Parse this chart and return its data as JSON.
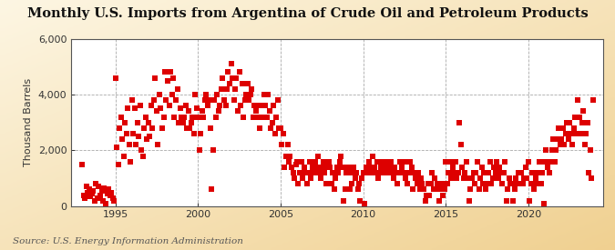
{
  "title": "Monthly U.S. Imports from Argentina of Crude Oil and Petroleum Products",
  "ylabel": "Thousand Barrels",
  "source": "Source: U.S. Energy Information Administration",
  "background_color": "#F5E6C8",
  "plot_bg_color": "#FFFFFF",
  "marker_color": "#DD0000",
  "marker_size": 15,
  "ylim": [
    0,
    6000
  ],
  "yticks": [
    0,
    2000,
    4000,
    6000
  ],
  "ytick_labels": [
    "0",
    "2,000",
    "4,000",
    "6,000"
  ],
  "xticks": [
    1995,
    2000,
    2005,
    2010,
    2015,
    2020
  ],
  "xlim_start": 1992.3,
  "xlim_end": 2024.5,
  "title_fontsize": 10.5,
  "label_fontsize": 8,
  "source_fontsize": 7.5,
  "data": [
    [
      1993.0,
      1500
    ],
    [
      1993.08,
      400
    ],
    [
      1993.17,
      300
    ],
    [
      1993.25,
      700
    ],
    [
      1993.33,
      500
    ],
    [
      1993.42,
      600
    ],
    [
      1993.5,
      350
    ],
    [
      1993.58,
      450
    ],
    [
      1993.67,
      550
    ],
    [
      1993.75,
      200
    ],
    [
      1993.83,
      800
    ],
    [
      1993.92,
      300
    ],
    [
      1994.0,
      700
    ],
    [
      1994.08,
      400
    ],
    [
      1994.17,
      550
    ],
    [
      1994.25,
      200
    ],
    [
      1994.33,
      650
    ],
    [
      1994.42,
      100
    ],
    [
      1994.5,
      450
    ],
    [
      1994.58,
      600
    ],
    [
      1994.67,
      380
    ],
    [
      1994.75,
      500
    ],
    [
      1994.83,
      300
    ],
    [
      1994.92,
      200
    ],
    [
      1995.0,
      4600
    ],
    [
      1995.08,
      2100
    ],
    [
      1995.17,
      1500
    ],
    [
      1995.25,
      2800
    ],
    [
      1995.33,
      3200
    ],
    [
      1995.42,
      2400
    ],
    [
      1995.5,
      1800
    ],
    [
      1995.58,
      3000
    ],
    [
      1995.67,
      2600
    ],
    [
      1995.75,
      3500
    ],
    [
      1995.83,
      2200
    ],
    [
      1995.92,
      1600
    ],
    [
      1996.0,
      3800
    ],
    [
      1996.08,
      2600
    ],
    [
      1996.17,
      3500
    ],
    [
      1996.25,
      2200
    ],
    [
      1996.33,
      3000
    ],
    [
      1996.42,
      2500
    ],
    [
      1996.5,
      3600
    ],
    [
      1996.58,
      2000
    ],
    [
      1996.67,
      1800
    ],
    [
      1996.75,
      2800
    ],
    [
      1996.83,
      3200
    ],
    [
      1996.92,
      2400
    ],
    [
      1997.0,
      3000
    ],
    [
      1997.08,
      2500
    ],
    [
      1997.17,
      3600
    ],
    [
      1997.25,
      2800
    ],
    [
      1997.33,
      3800
    ],
    [
      1997.42,
      4600
    ],
    [
      1997.5,
      3400
    ],
    [
      1997.58,
      2200
    ],
    [
      1997.67,
      4000
    ],
    [
      1997.75,
      3500
    ],
    [
      1997.83,
      2800
    ],
    [
      1997.92,
      3200
    ],
    [
      1998.0,
      4800
    ],
    [
      1998.08,
      3800
    ],
    [
      1998.17,
      4500
    ],
    [
      1998.25,
      3600
    ],
    [
      1998.33,
      4800
    ],
    [
      1998.42,
      4000
    ],
    [
      1998.5,
      4600
    ],
    [
      1998.58,
      3200
    ],
    [
      1998.67,
      3800
    ],
    [
      1998.75,
      4200
    ],
    [
      1998.83,
      3000
    ],
    [
      1998.92,
      3500
    ],
    [
      1999.0,
      3200
    ],
    [
      1999.08,
      3000
    ],
    [
      1999.17,
      3200
    ],
    [
      1999.25,
      3600
    ],
    [
      1999.33,
      2800
    ],
    [
      1999.42,
      3400
    ],
    [
      1999.5,
      2800
    ],
    [
      1999.58,
      3000
    ],
    [
      1999.67,
      3200
    ],
    [
      1999.75,
      2600
    ],
    [
      1999.83,
      4000
    ],
    [
      1999.92,
      3500
    ],
    [
      2000.0,
      3200
    ],
    [
      2000.08,
      2000
    ],
    [
      2000.17,
      2600
    ],
    [
      2000.25,
      3400
    ],
    [
      2000.33,
      3200
    ],
    [
      2000.42,
      3800
    ],
    [
      2000.5,
      4000
    ],
    [
      2000.58,
      3600
    ],
    [
      2000.67,
      3800
    ],
    [
      2000.75,
      2800
    ],
    [
      2000.83,
      600
    ],
    [
      2000.92,
      2000
    ],
    [
      2001.0,
      3800
    ],
    [
      2001.08,
      3200
    ],
    [
      2001.17,
      4000
    ],
    [
      2001.25,
      3400
    ],
    [
      2001.33,
      3600
    ],
    [
      2001.42,
      4200
    ],
    [
      2001.5,
      4600
    ],
    [
      2001.58,
      3800
    ],
    [
      2001.67,
      3600
    ],
    [
      2001.75,
      4200
    ],
    [
      2001.83,
      4800
    ],
    [
      2001.92,
      4400
    ],
    [
      2002.0,
      5100
    ],
    [
      2002.08,
      4600
    ],
    [
      2002.17,
      3800
    ],
    [
      2002.25,
      4200
    ],
    [
      2002.33,
      4600
    ],
    [
      2002.42,
      3400
    ],
    [
      2002.5,
      4800
    ],
    [
      2002.58,
      3600
    ],
    [
      2002.67,
      4400
    ],
    [
      2002.75,
      3200
    ],
    [
      2002.83,
      3800
    ],
    [
      2002.92,
      4000
    ],
    [
      2003.0,
      4400
    ],
    [
      2003.08,
      3800
    ],
    [
      2003.17,
      4000
    ],
    [
      2003.25,
      4200
    ],
    [
      2003.33,
      3200
    ],
    [
      2003.42,
      3600
    ],
    [
      2003.5,
      3400
    ],
    [
      2003.58,
      3200
    ],
    [
      2003.67,
      3600
    ],
    [
      2003.75,
      2800
    ],
    [
      2003.83,
      3200
    ],
    [
      2003.92,
      3600
    ],
    [
      2004.0,
      4000
    ],
    [
      2004.08,
      3600
    ],
    [
      2004.17,
      3200
    ],
    [
      2004.25,
      4000
    ],
    [
      2004.33,
      3400
    ],
    [
      2004.42,
      2800
    ],
    [
      2004.5,
      3000
    ],
    [
      2004.58,
      3600
    ],
    [
      2004.67,
      2600
    ],
    [
      2004.75,
      3200
    ],
    [
      2004.83,
      3800
    ],
    [
      2004.92,
      2800
    ],
    [
      2005.0,
      2800
    ],
    [
      2005.08,
      2200
    ],
    [
      2005.17,
      2600
    ],
    [
      2005.25,
      1400
    ],
    [
      2005.33,
      1800
    ],
    [
      2005.42,
      2200
    ],
    [
      2005.5,
      1600
    ],
    [
      2005.58,
      1800
    ],
    [
      2005.67,
      1400
    ],
    [
      2005.75,
      1200
    ],
    [
      2005.83,
      1000
    ],
    [
      2005.92,
      1500
    ],
    [
      2006.0,
      1600
    ],
    [
      2006.08,
      800
    ],
    [
      2006.17,
      1200
    ],
    [
      2006.25,
      1600
    ],
    [
      2006.33,
      1000
    ],
    [
      2006.42,
      1400
    ],
    [
      2006.5,
      1200
    ],
    [
      2006.58,
      800
    ],
    [
      2006.67,
      1200
    ],
    [
      2006.75,
      1600
    ],
    [
      2006.83,
      1000
    ],
    [
      2006.92,
      1400
    ],
    [
      2007.0,
      1200
    ],
    [
      2007.08,
      1600
    ],
    [
      2007.17,
      1400
    ],
    [
      2007.25,
      1800
    ],
    [
      2007.33,
      1200
    ],
    [
      2007.42,
      1000
    ],
    [
      2007.5,
      1400
    ],
    [
      2007.58,
      1600
    ],
    [
      2007.67,
      1200
    ],
    [
      2007.75,
      800
    ],
    [
      2007.83,
      1400
    ],
    [
      2007.92,
      1600
    ],
    [
      2008.0,
      1400
    ],
    [
      2008.08,
      800
    ],
    [
      2008.17,
      1200
    ],
    [
      2008.25,
      600
    ],
    [
      2008.33,
      1000
    ],
    [
      2008.42,
      1400
    ],
    [
      2008.5,
      1200
    ],
    [
      2008.58,
      1600
    ],
    [
      2008.67,
      1800
    ],
    [
      2008.75,
      1400
    ],
    [
      2008.83,
      200
    ],
    [
      2008.92,
      600
    ],
    [
      2009.0,
      1200
    ],
    [
      2009.08,
      1400
    ],
    [
      2009.17,
      600
    ],
    [
      2009.25,
      1200
    ],
    [
      2009.33,
      800
    ],
    [
      2009.42,
      1400
    ],
    [
      2009.5,
      1000
    ],
    [
      2009.58,
      1200
    ],
    [
      2009.67,
      600
    ],
    [
      2009.75,
      800
    ],
    [
      2009.83,
      200
    ],
    [
      2009.92,
      1000
    ],
    [
      2010.0,
      1200
    ],
    [
      2010.08,
      100
    ],
    [
      2010.17,
      1400
    ],
    [
      2010.25,
      1200
    ],
    [
      2010.33,
      1600
    ],
    [
      2010.42,
      1400
    ],
    [
      2010.5,
      1200
    ],
    [
      2010.58,
      1800
    ],
    [
      2010.67,
      1400
    ],
    [
      2010.75,
      1200
    ],
    [
      2010.83,
      1600
    ],
    [
      2010.92,
      1000
    ],
    [
      2011.0,
      1200
    ],
    [
      2011.08,
      1400
    ],
    [
      2011.17,
      1600
    ],
    [
      2011.25,
      1400
    ],
    [
      2011.33,
      1200
    ],
    [
      2011.42,
      1600
    ],
    [
      2011.5,
      1200
    ],
    [
      2011.58,
      1400
    ],
    [
      2011.67,
      1600
    ],
    [
      2011.75,
      1200
    ],
    [
      2011.83,
      1000
    ],
    [
      2011.92,
      1400
    ],
    [
      2012.0,
      1200
    ],
    [
      2012.08,
      800
    ],
    [
      2012.17,
      1200
    ],
    [
      2012.25,
      1600
    ],
    [
      2012.33,
      1400
    ],
    [
      2012.42,
      1200
    ],
    [
      2012.5,
      1600
    ],
    [
      2012.58,
      1000
    ],
    [
      2012.67,
      800
    ],
    [
      2012.75,
      1200
    ],
    [
      2012.83,
      1600
    ],
    [
      2012.92,
      1400
    ],
    [
      2013.0,
      600
    ],
    [
      2013.08,
      1200
    ],
    [
      2013.17,
      1000
    ],
    [
      2013.25,
      800
    ],
    [
      2013.33,
      1200
    ],
    [
      2013.42,
      600
    ],
    [
      2013.5,
      1000
    ],
    [
      2013.58,
      800
    ],
    [
      2013.67,
      600
    ],
    [
      2013.75,
      200
    ],
    [
      2013.83,
      400
    ],
    [
      2013.92,
      800
    ],
    [
      2014.0,
      400
    ],
    [
      2014.08,
      800
    ],
    [
      2014.17,
      1200
    ],
    [
      2014.25,
      600
    ],
    [
      2014.33,
      1000
    ],
    [
      2014.42,
      600
    ],
    [
      2014.5,
      800
    ],
    [
      2014.58,
      200
    ],
    [
      2014.67,
      600
    ],
    [
      2014.75,
      800
    ],
    [
      2014.83,
      400
    ],
    [
      2014.92,
      600
    ],
    [
      2015.0,
      1600
    ],
    [
      2015.08,
      800
    ],
    [
      2015.17,
      1200
    ],
    [
      2015.25,
      1600
    ],
    [
      2015.33,
      1000
    ],
    [
      2015.42,
      1400
    ],
    [
      2015.5,
      1200
    ],
    [
      2015.58,
      1600
    ],
    [
      2015.67,
      1000
    ],
    [
      2015.75,
      1200
    ],
    [
      2015.83,
      3000
    ],
    [
      2015.92,
      2200
    ],
    [
      2016.0,
      1400
    ],
    [
      2016.08,
      1000
    ],
    [
      2016.17,
      1200
    ],
    [
      2016.25,
      1600
    ],
    [
      2016.33,
      1000
    ],
    [
      2016.42,
      200
    ],
    [
      2016.5,
      600
    ],
    [
      2016.58,
      1000
    ],
    [
      2016.67,
      1200
    ],
    [
      2016.75,
      800
    ],
    [
      2016.83,
      1200
    ],
    [
      2016.92,
      1600
    ],
    [
      2017.0,
      600
    ],
    [
      2017.08,
      1000
    ],
    [
      2017.17,
      1400
    ],
    [
      2017.25,
      800
    ],
    [
      2017.33,
      1200
    ],
    [
      2017.42,
      600
    ],
    [
      2017.5,
      800
    ],
    [
      2017.58,
      1200
    ],
    [
      2017.67,
      1600
    ],
    [
      2017.75,
      800
    ],
    [
      2017.83,
      1000
    ],
    [
      2017.92,
      1400
    ],
    [
      2018.0,
      1200
    ],
    [
      2018.08,
      1600
    ],
    [
      2018.17,
      1000
    ],
    [
      2018.25,
      1400
    ],
    [
      2018.33,
      1200
    ],
    [
      2018.42,
      800
    ],
    [
      2018.5,
      1200
    ],
    [
      2018.58,
      1600
    ],
    [
      2018.67,
      200
    ],
    [
      2018.75,
      600
    ],
    [
      2018.83,
      1000
    ],
    [
      2018.92,
      800
    ],
    [
      2019.0,
      800
    ],
    [
      2019.08,
      200
    ],
    [
      2019.17,
      600
    ],
    [
      2019.25,
      1000
    ],
    [
      2019.33,
      800
    ],
    [
      2019.42,
      1200
    ],
    [
      2019.5,
      800
    ],
    [
      2019.58,
      1200
    ],
    [
      2019.67,
      800
    ],
    [
      2019.75,
      1000
    ],
    [
      2019.83,
      1400
    ],
    [
      2019.92,
      1000
    ],
    [
      2020.0,
      1600
    ],
    [
      2020.08,
      200
    ],
    [
      2020.17,
      800
    ],
    [
      2020.25,
      1200
    ],
    [
      2020.33,
      600
    ],
    [
      2020.42,
      1000
    ],
    [
      2020.5,
      800
    ],
    [
      2020.58,
      1200
    ],
    [
      2020.67,
      1600
    ],
    [
      2020.75,
      800
    ],
    [
      2020.83,
      1200
    ],
    [
      2020.92,
      100
    ],
    [
      2021.0,
      1600
    ],
    [
      2021.08,
      2000
    ],
    [
      2021.17,
      1400
    ],
    [
      2021.25,
      1200
    ],
    [
      2021.33,
      1600
    ],
    [
      2021.42,
      2000
    ],
    [
      2021.5,
      2400
    ],
    [
      2021.58,
      1600
    ],
    [
      2021.67,
      2000
    ],
    [
      2021.75,
      2400
    ],
    [
      2021.83,
      2800
    ],
    [
      2021.92,
      2200
    ],
    [
      2022.0,
      2400
    ],
    [
      2022.08,
      2800
    ],
    [
      2022.17,
      2200
    ],
    [
      2022.25,
      2600
    ],
    [
      2022.33,
      3000
    ],
    [
      2022.42,
      2400
    ],
    [
      2022.5,
      3000
    ],
    [
      2022.58,
      2600
    ],
    [
      2022.67,
      2200
    ],
    [
      2022.75,
      2800
    ],
    [
      2022.83,
      3200
    ],
    [
      2022.92,
      2600
    ],
    [
      2023.0,
      3800
    ],
    [
      2023.08,
      3200
    ],
    [
      2023.17,
      2600
    ],
    [
      2023.25,
      3000
    ],
    [
      2023.33,
      3400
    ],
    [
      2023.42,
      2200
    ],
    [
      2023.5,
      2600
    ],
    [
      2023.58,
      3000
    ],
    [
      2023.67,
      1200
    ],
    [
      2023.75,
      2000
    ],
    [
      2023.83,
      1000
    ],
    [
      2023.92,
      3800
    ]
  ]
}
